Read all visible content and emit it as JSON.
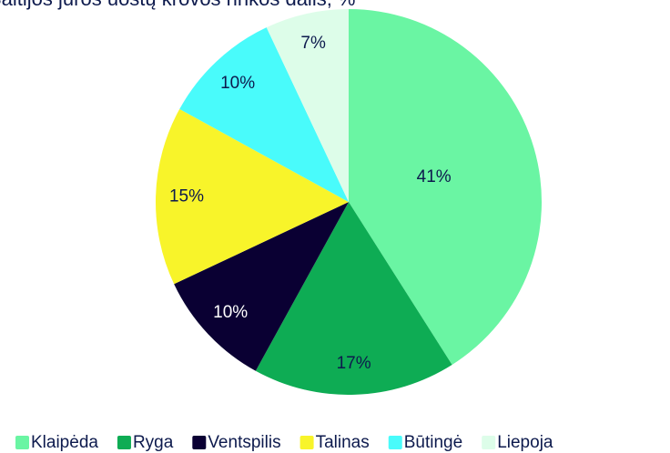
{
  "chart_data": {
    "type": "pie",
    "title": "Baltijos jūros uostų krovos rinkos dalis, %",
    "categories": [
      "Klaipėda",
      "Ryga",
      "Ventspilis",
      "Talinas",
      "Būtingė",
      "Liepoja"
    ],
    "values": [
      41,
      17,
      10,
      15,
      10,
      7
    ],
    "value_labels": [
      "41%",
      "17%",
      "10%",
      "15%",
      "10%",
      "7%"
    ],
    "colors": [
      "#6af5a3",
      "#0eac54",
      "#0a0033",
      "#f8f42a",
      "#49fbfb",
      "#ddfde9"
    ],
    "legend": "bottom"
  }
}
